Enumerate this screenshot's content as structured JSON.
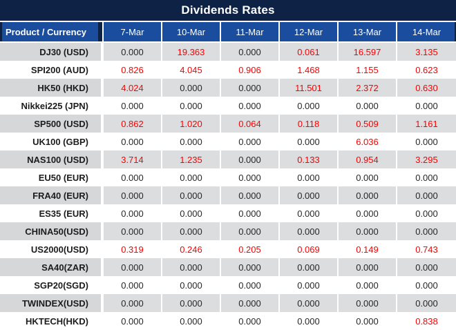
{
  "title": "Dividends Rates",
  "colors": {
    "title_bg": "#0e2245",
    "header_bg": "#1b4d9e",
    "header_text": "#ffffff",
    "row_bg": "#ffffff",
    "row_alt_bg": "#dcdddf",
    "row_alt_product_bg": "#d6d7d8",
    "value_text": "#262626",
    "nonzero_value_text": "#fb0000"
  },
  "table": {
    "first_column_header": "Product / Currency",
    "date_columns": [
      "7-Mar",
      "10-Mar",
      "11-Mar",
      "12-Mar",
      "13-Mar",
      "14-Mar"
    ],
    "rows": [
      {
        "product": "DJ30 (USD)",
        "values": [
          "0.000",
          "19.363",
          "0.000",
          "0.061",
          "16.597",
          "3.135"
        ]
      },
      {
        "product": "SPI200 (AUD)",
        "values": [
          "0.826",
          "4.045",
          "0.906",
          "1.468",
          "1.155",
          "0.623"
        ]
      },
      {
        "product": "HK50 (HKD)",
        "values": [
          "4.024",
          "0.000",
          "0.000",
          "11.501",
          "2.372",
          "0.630"
        ]
      },
      {
        "product": "Nikkei225 (JPN)",
        "values": [
          "0.000",
          "0.000",
          "0.000",
          "0.000",
          "0.000",
          "0.000"
        ]
      },
      {
        "product": "SP500 (USD)",
        "values": [
          "0.862",
          "1.020",
          "0.064",
          "0.118",
          "0.509",
          "1.161"
        ]
      },
      {
        "product": "UK100 (GBP)",
        "values": [
          "0.000",
          "0.000",
          "0.000",
          "0.000",
          "6.036",
          "0.000"
        ]
      },
      {
        "product": "NAS100 (USD)",
        "values": [
          "3.714",
          "1.235",
          "0.000",
          "0.133",
          "0.954",
          "3.295"
        ]
      },
      {
        "product": "EU50 (EUR)",
        "values": [
          "0.000",
          "0.000",
          "0.000",
          "0.000",
          "0.000",
          "0.000"
        ]
      },
      {
        "product": "FRA40 (EUR)",
        "values": [
          "0.000",
          "0.000",
          "0.000",
          "0.000",
          "0.000",
          "0.000"
        ]
      },
      {
        "product": "ES35 (EUR)",
        "values": [
          "0.000",
          "0.000",
          "0.000",
          "0.000",
          "0.000",
          "0.000"
        ]
      },
      {
        "product": "CHINA50(USD)",
        "values": [
          "0.000",
          "0.000",
          "0.000",
          "0.000",
          "0.000",
          "0.000"
        ]
      },
      {
        "product": "US2000(USD)",
        "values": [
          "0.319",
          "0.246",
          "0.205",
          "0.069",
          "0.149",
          "0.743"
        ]
      },
      {
        "product": "SA40(ZAR)",
        "values": [
          "0.000",
          "0.000",
          "0.000",
          "0.000",
          "0.000",
          "0.000"
        ]
      },
      {
        "product": "SGP20(SGD)",
        "values": [
          "0.000",
          "0.000",
          "0.000",
          "0.000",
          "0.000",
          "0.000"
        ]
      },
      {
        "product": "TWINDEX(USD)",
        "values": [
          "0.000",
          "0.000",
          "0.000",
          "0.000",
          "0.000",
          "0.000"
        ]
      },
      {
        "product": "HKTECH(HKD)",
        "values": [
          "0.000",
          "0.000",
          "0.000",
          "0.000",
          "0.000",
          "0.838"
        ]
      }
    ]
  }
}
